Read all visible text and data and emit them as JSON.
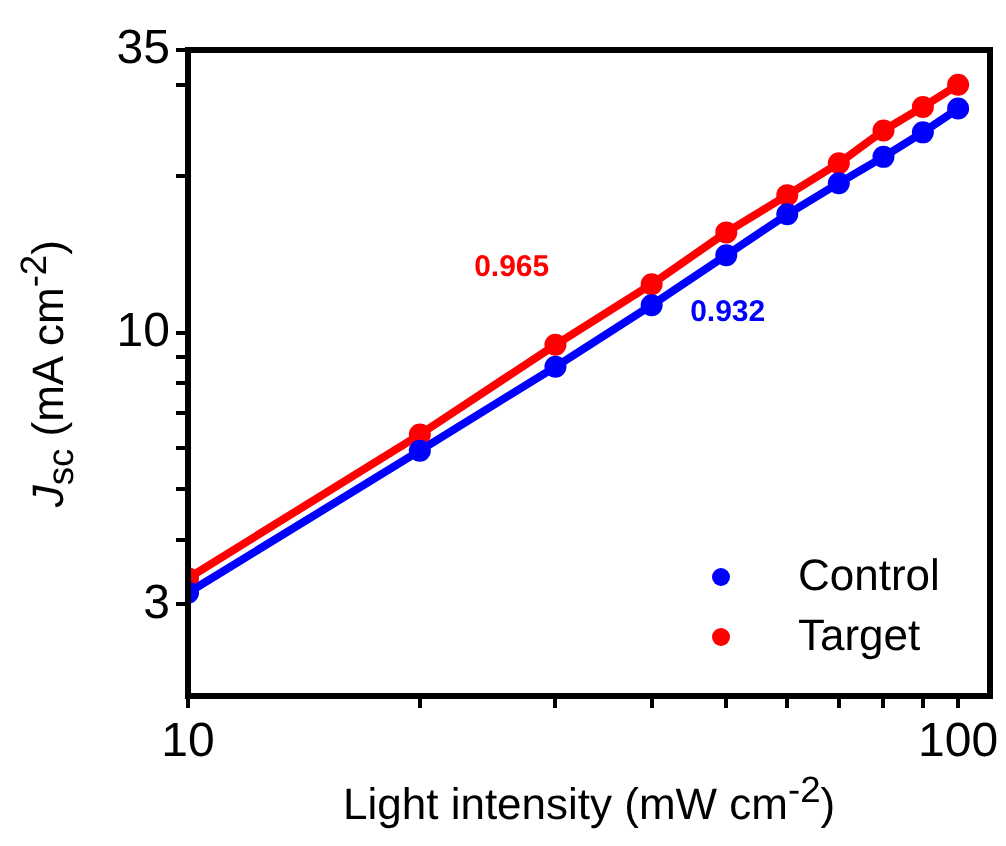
{
  "chart_data": {
    "type": "line",
    "xlabel": "Light intensity (mW cm$^{-2}$)",
    "ylabel": "J$_{sc}$ (mA cm$^{-2}$)",
    "x": [
      10,
      20,
      30,
      40,
      50,
      60,
      70,
      80,
      90,
      100
    ],
    "series": [
      {
        "name": "Control",
        "color": "#0000ff",
        "values": [
          3.16,
          5.93,
          8.6,
          11.3,
          14.1,
          16.9,
          19.4,
          21.8,
          24.3,
          27.0
        ]
      },
      {
        "name": "Target",
        "color": "#ff0000",
        "values": [
          3.37,
          6.37,
          9.48,
          12.4,
          15.6,
          18.4,
          21.2,
          24.5,
          27.2,
          30.0
        ]
      }
    ],
    "annotations": [
      "0.932",
      "0.965"
    ],
    "log": "xy",
    "xlim": [
      10,
      110
    ],
    "ylim": [
      2,
      35
    ],
    "xticks": [
      10,
      {
        "value": 20,
        "label": null
      },
      {
        "value": 30,
        "label": null
      },
      {
        "value": 40,
        "label": null
      },
      {
        "value": 50,
        "label": null
      },
      {
        "value": 60,
        "label": null
      },
      {
        "value": 70,
        "label": null
      },
      {
        "value": 80,
        "label": null
      },
      {
        "value": 90,
        "label": null
      },
      100
    ],
    "yticks": [
      3,
      {
        "value": 4,
        "label": null
      },
      {
        "value": 5,
        "label": null
      },
      {
        "value": 6,
        "label": null
      },
      {
        "value": 7,
        "label": null
      },
      {
        "value": 8,
        "label": null
      },
      {
        "value": 9,
        "label": null
      },
      10,
      {
        "value": 20,
        "label": null
      },
      {
        "value": 30,
        "label": null
      },
      35
    ],
    "grid": false,
    "legend": "bottom right",
    "marker": "circle",
    "line_style": "solid"
  }
}
